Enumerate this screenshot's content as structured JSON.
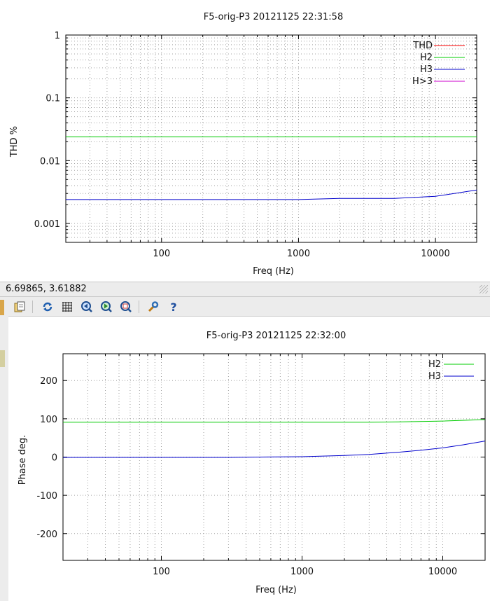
{
  "status_bar": {
    "coords": "6.69865,  3.61882"
  },
  "toolbar": {
    "icons": [
      "copy-to-clipboard-icon",
      "replot-icon",
      "grid-icon",
      "zoom-previous-icon",
      "zoom-next-icon",
      "unzoom-icon",
      "settings-icon",
      "help-icon"
    ]
  },
  "chart_data": [
    {
      "type": "line",
      "title": "F5-orig-P3 20121125 22:31:58",
      "xlabel": "Freq (Hz)",
      "ylabel": "THD %",
      "xscale": "log",
      "yscale": "log",
      "xlim": [
        20,
        20000
      ],
      "ylim": [
        0.0005,
        1
      ],
      "xticks": [
        100,
        1000,
        10000
      ],
      "xtick_labels": [
        "100",
        "1000",
        "10000"
      ],
      "yticks": [
        0.001,
        0.01,
        0.1,
        1
      ],
      "ytick_labels": [
        "0.001",
        "0.01",
        "0.1",
        "1"
      ],
      "grid": true,
      "legend": "top-right",
      "series": [
        {
          "name": "THD",
          "color": "#ff0000",
          "x": [
            20,
            20000
          ],
          "y": [
            null,
            null
          ]
        },
        {
          "name": "H2",
          "color": "#00cc00",
          "x": [
            20,
            100,
            1000,
            10000,
            20000
          ],
          "y": [
            0.024,
            0.024,
            0.024,
            0.024,
            0.024
          ]
        },
        {
          "name": "H3",
          "color": "#0000cc",
          "x": [
            20,
            100,
            500,
            1000,
            2000,
            5000,
            10000,
            20000
          ],
          "y": [
            0.0024,
            0.0024,
            0.0024,
            0.0024,
            0.0025,
            0.0025,
            0.0027,
            0.0034
          ]
        },
        {
          "name": "H>3",
          "color": "#cc00cc",
          "x": [
            20,
            20000
          ],
          "y": [
            null,
            null
          ]
        }
      ]
    },
    {
      "type": "line",
      "title": "F5-orig-P3 20121125 22:32:00",
      "xlabel": "Freq (Hz)",
      "ylabel": "Phase deg.",
      "xscale": "log",
      "yscale": "linear",
      "xlim": [
        20,
        20000
      ],
      "ylim": [
        -270,
        270
      ],
      "xticks": [
        100,
        1000,
        10000
      ],
      "xtick_labels": [
        "100",
        "1000",
        "10000"
      ],
      "yticks": [
        -200,
        -100,
        0,
        100,
        200
      ],
      "ytick_labels": [
        "-200",
        "-100",
        "0",
        "100",
        "200"
      ],
      "grid": true,
      "legend": "top-right",
      "series": [
        {
          "name": "H2",
          "color": "#00cc00",
          "x": [
            20,
            100,
            1000,
            3000,
            5000,
            10000,
            20000
          ],
          "y": [
            91,
            91,
            91,
            91,
            92,
            94,
            98
          ]
        },
        {
          "name": "H3",
          "color": "#0000cc",
          "x": [
            20,
            100,
            300,
            500,
            1000,
            2000,
            3000,
            5000,
            7000,
            10000,
            14000,
            20000
          ],
          "y": [
            -1,
            -1,
            -1,
            0,
            1,
            4,
            7,
            13,
            18,
            24,
            32,
            42
          ]
        }
      ]
    }
  ]
}
